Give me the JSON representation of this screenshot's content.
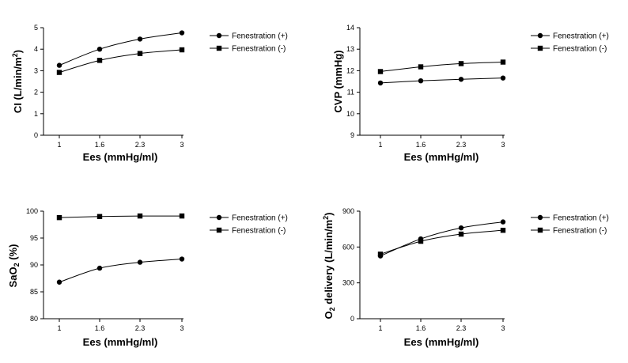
{
  "chart_data": [
    {
      "type": "line",
      "xlabel": "Ees (mmHg/ml)",
      "ylabel": "CI (L/min/m²)",
      "ylabel_main": "CI (L/min/m",
      "ylabel_sup": "2",
      "ylabel_tail": ")",
      "categories": [
        "1",
        "1.6",
        "2.3",
        "3"
      ],
      "ylim": [
        0,
        5
      ],
      "yticks": [
        "0",
        "1",
        "2",
        "3",
        "4",
        "5"
      ],
      "legend_position": "right",
      "series": [
        {
          "name": "Fenestration (+)",
          "marker": "circle",
          "values": [
            3.25,
            4.0,
            4.47,
            4.76
          ]
        },
        {
          "name": "Fenestration (-)",
          "marker": "square",
          "values": [
            2.92,
            3.48,
            3.8,
            3.97
          ]
        }
      ]
    },
    {
      "type": "line",
      "xlabel": "Ees (mmHg/ml)",
      "ylabel": "CVP (mmHg)",
      "ylabel_main": "CVP (mmHg)",
      "ylabel_sup": "",
      "ylabel_tail": "",
      "categories": [
        "1",
        "1.6",
        "2.3",
        "3"
      ],
      "ylim": [
        9,
        14
      ],
      "yticks": [
        "9",
        "10",
        "11",
        "12",
        "13",
        "14"
      ],
      "legend_position": "right",
      "series": [
        {
          "name": "Fenestration (+)",
          "marker": "circle",
          "values": [
            11.43,
            11.53,
            11.6,
            11.66
          ]
        },
        {
          "name": "Fenestration (-)",
          "marker": "square",
          "values": [
            11.96,
            12.18,
            12.33,
            12.4
          ]
        }
      ]
    },
    {
      "type": "line",
      "xlabel": "Ees (mmHg/ml)",
      "ylabel": "SaO₂ (%)",
      "ylabel_main": "SaO",
      "ylabel_sub": "2",
      "ylabel_tail": " (%)",
      "categories": [
        "1",
        "1.6",
        "2.3",
        "3"
      ],
      "ylim": [
        80,
        100
      ],
      "yticks": [
        "80",
        "85",
        "90",
        "95",
        "100"
      ],
      "legend_position": "right",
      "series": [
        {
          "name": "Fenestration (+)",
          "marker": "circle",
          "values": [
            86.8,
            89.4,
            90.5,
            91.1
          ]
        },
        {
          "name": "Fenestration (-)",
          "marker": "square",
          "values": [
            98.8,
            99.0,
            99.1,
            99.1
          ]
        }
      ]
    },
    {
      "type": "line",
      "xlabel": "Ees (mmHg/ml)",
      "ylabel": "O₂ delivery (L/min/m²)",
      "ylabel_main": "O",
      "ylabel_sub": "2",
      "ylabel_mid": " delivery (L/min/m",
      "ylabel_sup": "2",
      "ylabel_tail": ")",
      "categories": [
        "1",
        "1.6",
        "2.3",
        "3"
      ],
      "ylim": [
        0,
        900
      ],
      "yticks": [
        "0",
        "300",
        "600",
        "900"
      ],
      "legend_position": "right",
      "series": [
        {
          "name": "Fenestration (+)",
          "marker": "circle",
          "values": [
            525,
            668,
            760,
            810
          ]
        },
        {
          "name": "Fenestration (-)",
          "marker": "square",
          "values": [
            540,
            648,
            708,
            740
          ]
        }
      ]
    }
  ]
}
